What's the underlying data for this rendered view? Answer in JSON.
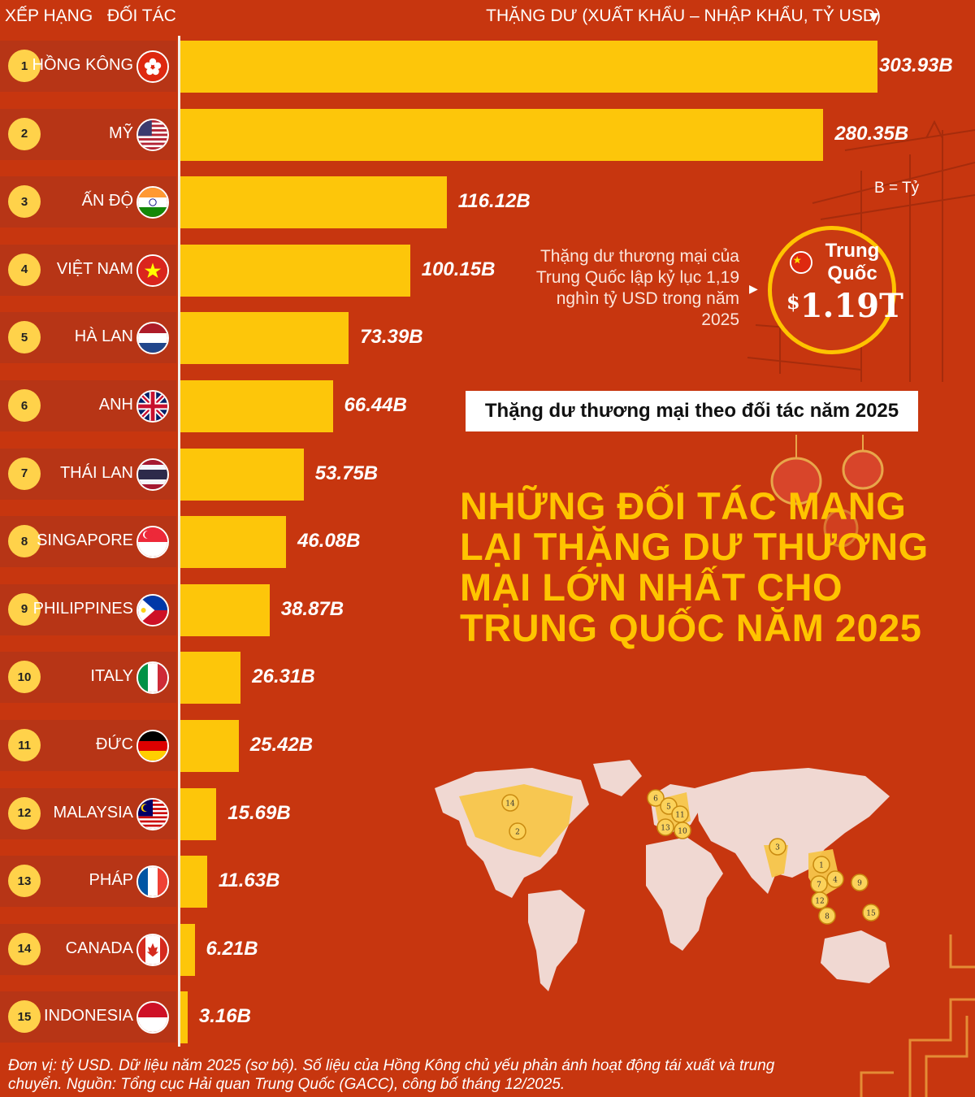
{
  "headers": {
    "rank": "XẾP HẠNG",
    "partner": "ĐỐI TÁC",
    "value": "THẶNG DƯ (XUẤT KHẨU – NHẬP KHẨU, TỶ USD)"
  },
  "colors": {
    "background": "#c7360f",
    "bar": "#fdc60a",
    "badge": "#ffd24a",
    "title": "#ffc400"
  },
  "chart_data": {
    "type": "bar",
    "orientation": "horizontal",
    "categories": [
      "HỒNG KÔNG",
      "MỸ",
      "ẤN ĐỘ",
      "VIỆT NAM",
      "HÀ LAN",
      "ANH",
      "THÁI LAN",
      "SINGAPORE",
      "PHILIPPINES",
      "ITALY",
      "ĐỨC",
      "MALAYSIA",
      "PHÁP",
      "CANADA",
      "INDONESIA"
    ],
    "ranks": [
      "1",
      "2",
      "3",
      "4",
      "5",
      "6",
      "7",
      "8",
      "9",
      "10",
      "11",
      "12",
      "13",
      "14",
      "15"
    ],
    "values": [
      303.93,
      280.35,
      116.12,
      100.15,
      73.39,
      66.44,
      53.75,
      46.08,
      38.87,
      26.31,
      25.42,
      15.69,
      11.63,
      6.21,
      3.16
    ],
    "value_labels": [
      "303.93B",
      "280.35B",
      "116.12B",
      "100.15B",
      "73.39B",
      "66.44B",
      "53.75B",
      "46.08B",
      "38.87B",
      "26.31B",
      "25.42B",
      "15.69B",
      "11.63B",
      "6.21B",
      "3.16B"
    ],
    "flags": [
      "hong-kong",
      "usa",
      "india",
      "vietnam",
      "netherlands",
      "uk",
      "thailand",
      "singapore",
      "philippines",
      "italy",
      "germany",
      "malaysia",
      "france",
      "canada",
      "indonesia"
    ],
    "title": "NHỮNG ĐỐI TÁC MANG LẠI THẶNG DƯ THƯƠNG MẠI LỚN NHẤT CHO TRUNG QUỐC NĂM 2025",
    "subtitle": "Thặng dư thương mại theo đối tác năm 2025",
    "xlabel": "THẶNG DƯ (XUẤT KHẨU – NHẬP KHẨU, TỶ USD)",
    "legend": "none",
    "grid": false
  },
  "unit_note": "B = Tỷ",
  "callout": {
    "text": "Thặng dư thương mại của Trung Quốc lập kỷ lục 1,19 nghìn tỷ USD trong năm 2025",
    "country": "Trung Quốc",
    "dollar": "$",
    "total": "1.19T"
  },
  "footnote": "Đơn vị: tỷ USD. Dữ liệu năm 2025 (sơ bộ). Số liệu của Hồng Kông chủ yếu phản ánh hoạt động tái xuất và trung chuyển. Nguồn: Tổng cục Hải quan Trung Quốc (GACC), công bố tháng 12/2025.",
  "map": {
    "markers": [
      "14",
      "2",
      "6",
      "5",
      "11",
      "13",
      "10",
      "3",
      "1",
      "7",
      "4",
      "9",
      "12",
      "8",
      "15"
    ]
  }
}
